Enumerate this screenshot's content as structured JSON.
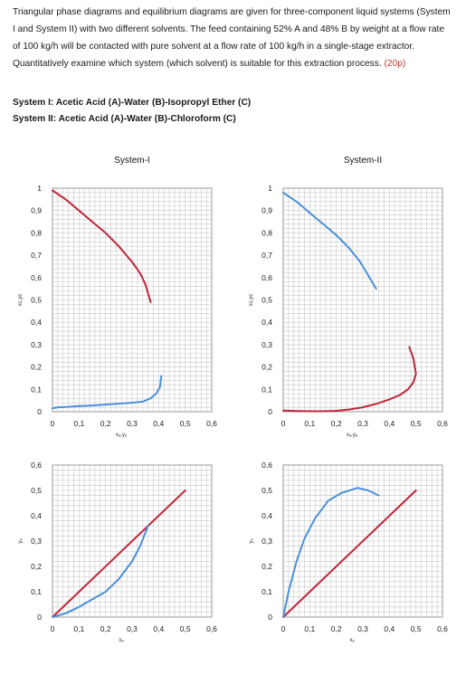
{
  "problem": {
    "text": "Triangular phase diagrams and equilibrium diagrams are given for three-component liquid systems (System I and System II) with two different solvents. The feed containing 52% A and 48% B by weight at a flow rate of 100 kg/h will be contacted with pure solvent at a flow rate of 100 kg/h in a single-stage extractor. Quantitatively examine which system (which solvent) is suitable for this extraction process.",
    "points": "(20p)"
  },
  "systems": {
    "system1": "System I: Acetic Acid (A)-Water (B)-Isopropyl Ether (C)",
    "system2": "System II: Acetic Acid (A)-Water (B)-Chloroform (C)"
  },
  "colors": {
    "red": "#c0263b",
    "blue": "#4a90d9",
    "grid": "#c8c8c8",
    "frame": "#9a9a9a"
  },
  "chart_data": [
    {
      "type": "line",
      "title": "System-I",
      "xlabel": "xₐ,yₐ",
      "ylabel": "xᴄ,yᴄ",
      "xlim": [
        0,
        0.6
      ],
      "ylim": [
        0,
        1
      ],
      "xticks": [
        "0",
        "0,1",
        "0,2",
        "0,3",
        "0,4",
        "0,5",
        "0,6"
      ],
      "yticks": [
        "0",
        "0,1",
        "0,2",
        "0,3",
        "0,4",
        "0,5",
        "0,6",
        "0,7",
        "0,8",
        "0,9",
        "1"
      ],
      "grid": true,
      "series": [
        {
          "color": "red",
          "x": [
            0,
            0.05,
            0.1,
            0.15,
            0.2,
            0.25,
            0.3,
            0.33,
            0.35,
            0.37
          ],
          "y": [
            0.99,
            0.95,
            0.9,
            0.85,
            0.8,
            0.74,
            0.67,
            0.62,
            0.57,
            0.49
          ]
        },
        {
          "color": "blue",
          "x": [
            0,
            0.02,
            0.06,
            0.1,
            0.15,
            0.2,
            0.25,
            0.3,
            0.34,
            0.37,
            0.39,
            0.405,
            0.41
          ],
          "y": [
            0.015,
            0.02,
            0.022,
            0.025,
            0.028,
            0.032,
            0.036,
            0.04,
            0.045,
            0.06,
            0.08,
            0.11,
            0.16
          ]
        }
      ]
    },
    {
      "type": "line",
      "title": "System-II",
      "xlabel": "xₐ,yₐ",
      "ylabel": "xᴄ,yᴄ",
      "xlim": [
        0,
        0.6
      ],
      "ylim": [
        0,
        1
      ],
      "xticks": [
        "0",
        "0,1",
        "0,2",
        "0,3",
        "0,4",
        "0,5",
        "0,6"
      ],
      "yticks": [
        "0",
        "0,1",
        "0,2",
        "0,3",
        "0,4",
        "0,5",
        "0,6",
        "0,7",
        "0,8",
        "0,9",
        "1"
      ],
      "grid": true,
      "series": [
        {
          "color": "blue",
          "x": [
            0,
            0.05,
            0.1,
            0.15,
            0.2,
            0.25,
            0.29,
            0.32,
            0.35
          ],
          "y": [
            0.98,
            0.94,
            0.89,
            0.84,
            0.79,
            0.73,
            0.67,
            0.61,
            0.55
          ]
        },
        {
          "color": "red",
          "x": [
            0,
            0.05,
            0.1,
            0.15,
            0.2,
            0.25,
            0.3,
            0.35,
            0.4,
            0.44,
            0.47,
            0.49,
            0.5,
            0.49,
            0.475
          ],
          "y": [
            0.005,
            0.003,
            0.002,
            0.002,
            0.004,
            0.01,
            0.02,
            0.035,
            0.055,
            0.075,
            0.1,
            0.13,
            0.17,
            0.24,
            0.29
          ]
        }
      ]
    },
    {
      "type": "line",
      "title": "",
      "xlabel": "xₐ",
      "ylabel": "yₐ",
      "xlim": [
        0,
        0.6
      ],
      "ylim": [
        0,
        0.6
      ],
      "xticks": [
        "0",
        "0,1",
        "0,2",
        "0,3",
        "0,4",
        "0,5",
        "0,6"
      ],
      "yticks": [
        "0",
        "0,1",
        "0,2",
        "0,3",
        "0,4",
        "0,5",
        "0,6"
      ],
      "grid": true,
      "series": [
        {
          "color": "red",
          "x": [
            0,
            0.5
          ],
          "y": [
            0,
            0.5
          ]
        },
        {
          "color": "blue",
          "x": [
            0,
            0.05,
            0.1,
            0.15,
            0.2,
            0.25,
            0.3,
            0.33,
            0.36
          ],
          "y": [
            0,
            0.015,
            0.04,
            0.07,
            0.1,
            0.15,
            0.22,
            0.28,
            0.36
          ]
        }
      ]
    },
    {
      "type": "line",
      "title": "",
      "xlabel": "xₐ",
      "ylabel": "yₐ",
      "xlim": [
        0,
        0.6
      ],
      "ylim": [
        0,
        0.6
      ],
      "xticks": [
        "0",
        "0,1",
        "0,2",
        "0,3",
        "0,4",
        "0,5",
        "0,6"
      ],
      "yticks": [
        "0",
        "0,1",
        "0,2",
        "0,3",
        "0,4",
        "0,5",
        "0,6"
      ],
      "grid": true,
      "series": [
        {
          "color": "red",
          "x": [
            0,
            0.5
          ],
          "y": [
            0,
            0.5
          ]
        },
        {
          "color": "blue",
          "x": [
            0,
            0.02,
            0.05,
            0.08,
            0.12,
            0.17,
            0.22,
            0.28,
            0.32,
            0.36
          ],
          "y": [
            0,
            0.1,
            0.22,
            0.31,
            0.39,
            0.46,
            0.49,
            0.51,
            0.5,
            0.48
          ]
        }
      ]
    }
  ]
}
